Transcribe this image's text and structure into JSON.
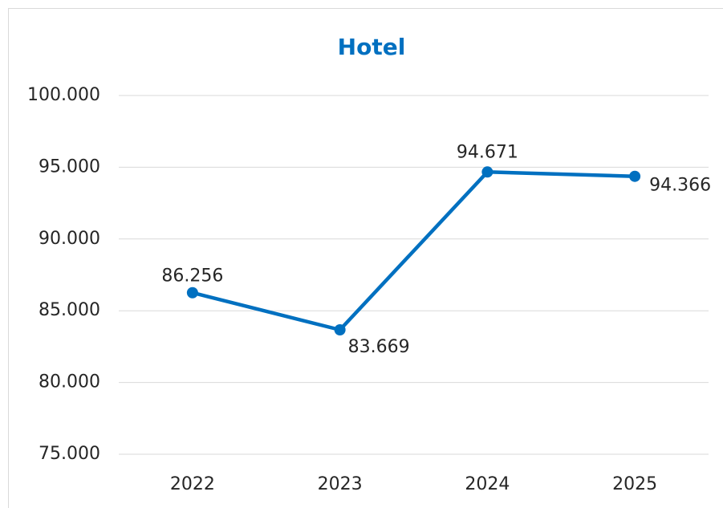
{
  "chart_data": {
    "type": "line",
    "title": "Hotel",
    "categories": [
      "2022",
      "2023",
      "2024",
      "2025"
    ],
    "series": [
      {
        "name": "Hotel",
        "color": "#0070c0",
        "values": [
          86256,
          83669,
          94671,
          94366
        ],
        "value_labels": [
          "86.256",
          "83.669",
          "94.671",
          "94.366"
        ]
      }
    ],
    "ylim": [
      75000,
      100000
    ],
    "yticks": [
      {
        "value": 75000,
        "label": "75.000"
      },
      {
        "value": 80000,
        "label": "80.000"
      },
      {
        "value": 85000,
        "label": "85.000"
      },
      {
        "value": 90000,
        "label": "90.000"
      },
      {
        "value": 95000,
        "label": "95.000"
      },
      {
        "value": 100000,
        "label": "100.000"
      }
    ],
    "grid": true
  }
}
